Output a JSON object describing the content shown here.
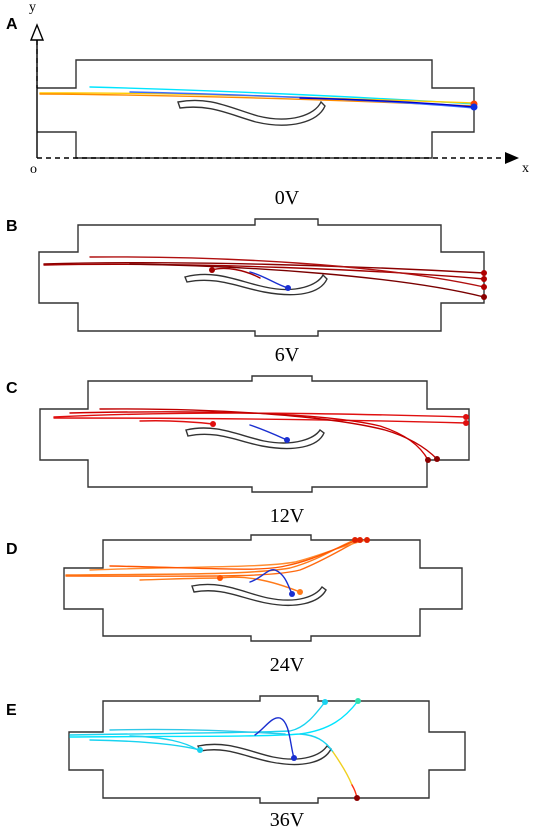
{
  "panels": [
    {
      "label": "A",
      "voltage": "0V"
    },
    {
      "label": "B",
      "voltage": "6V"
    },
    {
      "label": "C",
      "voltage": "12V"
    },
    {
      "label": "D",
      "voltage": "24V"
    },
    {
      "label": "E",
      "voltage": "36V"
    }
  ],
  "axes": {
    "x_label": "x",
    "y_label": "y",
    "origin_label": "o"
  },
  "colors": {
    "chamber": "#333333",
    "panel_A": [
      "#00e5ff",
      "#ffcc00",
      "#ff8c00",
      "#0000cd"
    ],
    "panel_B": "#a00000",
    "panel_C": "#e01010",
    "panel_D": "#ff7a1a",
    "panel_E": "#19d3f0",
    "trapped": "#1a2fd0"
  }
}
